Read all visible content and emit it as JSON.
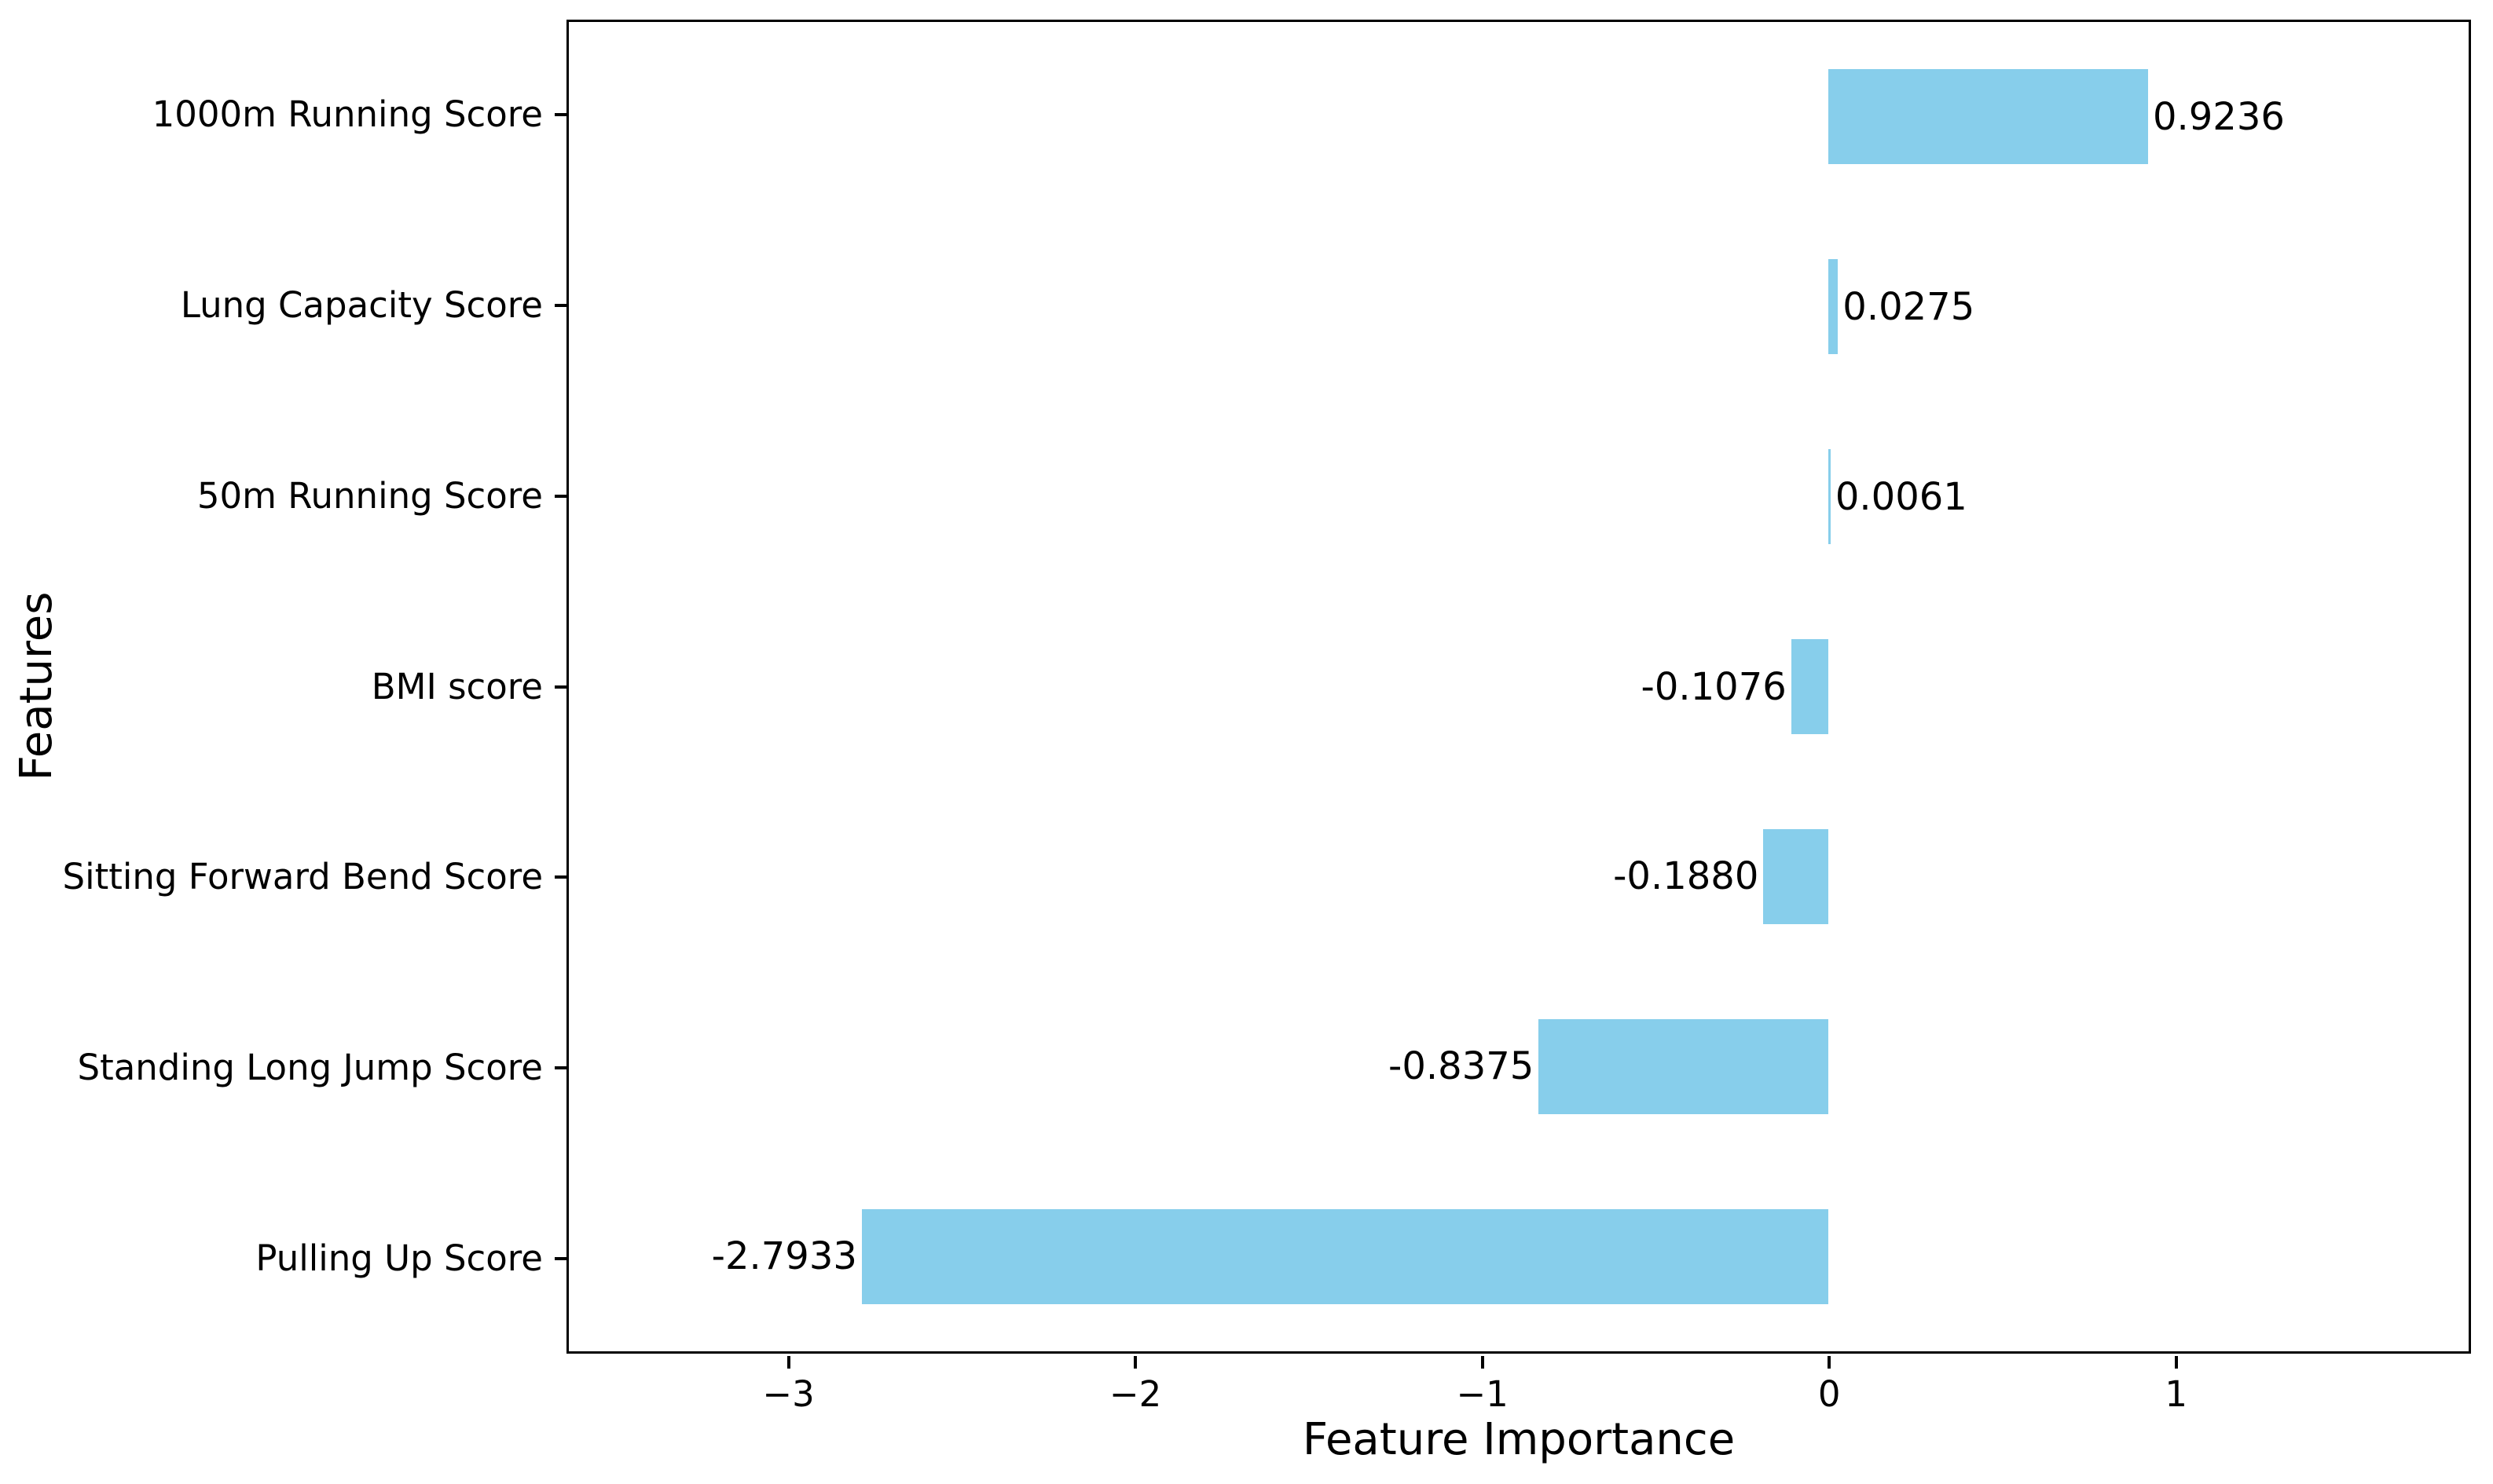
{
  "figure": {
    "background_color": "#ffffff",
    "text_color": "#000000",
    "frame_color": "#000000"
  },
  "chart_data": {
    "type": "bar",
    "orientation": "horizontal",
    "title": "",
    "xlabel": "Feature Importance",
    "ylabel": "Features",
    "categories": [
      "1000m Running Score",
      "Lung Capacity Score",
      "50m Running Score",
      "BMI score",
      "Sitting Forward Bend Score",
      "Standing Long Jump Score",
      "Pulling Up Score"
    ],
    "values": [
      0.9236,
      0.0275,
      0.0061,
      -0.1076,
      -0.188,
      -0.8375,
      -2.7933
    ],
    "value_labels": [
      "0.9236",
      "0.0275",
      "0.0061",
      "-0.1076",
      "-0.1880",
      "-0.8375",
      "-2.7933"
    ],
    "bar_color": "#87CEEB",
    "xlim": [
      -3.64,
      1.85
    ],
    "x_ticks": [
      -3,
      -2,
      -1,
      0,
      1
    ],
    "x_tick_labels": [
      "−3",
      "−2",
      "−1",
      "0",
      "1"
    ],
    "grid": false,
    "legend": null
  }
}
